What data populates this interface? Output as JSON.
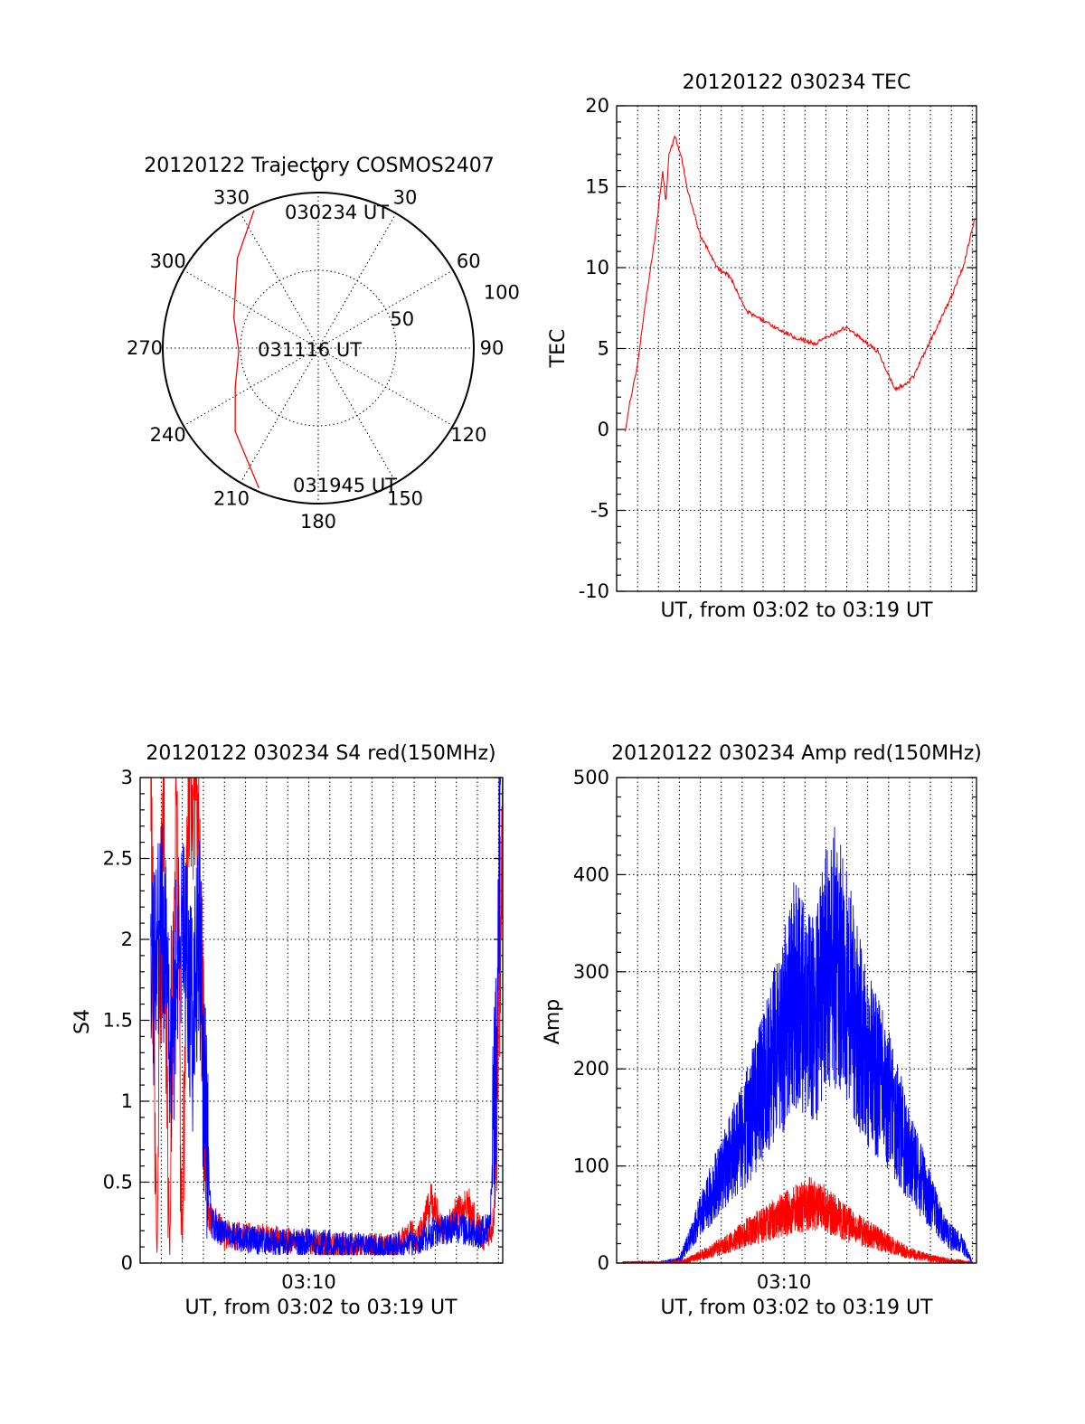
{
  "colors": {
    "red": "#ff0000",
    "blue": "#0000ff",
    "axis": "#000000"
  },
  "chart_data": [
    {
      "type": "polar",
      "id": "trajectory",
      "title": "20120122 Trajectory COSMOS2407",
      "angle_labels": [
        "0",
        "30",
        "60",
        "90",
        "120",
        "150",
        "180",
        "210",
        "240",
        "270",
        "300",
        "330"
      ],
      "radial_labels": [
        "50",
        "100"
      ],
      "rlim": [
        0,
        100
      ],
      "grid": true,
      "series": [
        {
          "color": "red",
          "points": [
            {
              "az": 335,
              "elev": 2
            },
            {
              "az": 318,
              "elev": 20
            },
            {
              "az": 290,
              "elev": 38
            },
            {
              "az": 268,
              "elev": 44
            },
            {
              "az": 245,
              "elev": 37
            },
            {
              "az": 225,
              "elev": 22
            },
            {
              "az": 203,
              "elev": 2
            }
          ]
        }
      ],
      "annotations": [
        "030234 UT",
        "031116 UT",
        "031945 UT"
      ]
    },
    {
      "type": "line",
      "id": "tec",
      "title": "20120122 030234 TEC",
      "xlabel": "UT, from 03:02 to 03:19 UT",
      "ylabel": "TEC",
      "xlim": [
        0,
        17.2
      ],
      "ylim": [
        -10,
        20
      ],
      "yticks": [
        "-10",
        "-5",
        "0",
        "5",
        "10",
        "15",
        "20"
      ],
      "xticks": [],
      "grid": true,
      "series": [
        {
          "color": "red",
          "x": [
            0.4,
            0.6,
            1.0,
            1.4,
            1.9,
            2.2,
            2.35,
            2.5,
            2.8,
            3.1,
            3.4,
            4.0,
            4.8,
            5.4,
            6.2,
            7.3,
            8.5,
            9.5,
            10.5,
            11.0,
            11.5,
            12.5,
            13.3,
            13.8,
            14.2,
            15.0,
            16.0,
            16.6,
            17.1
          ],
          "y": [
            -0.2,
            1.5,
            4.0,
            8.0,
            12.5,
            16.0,
            14.0,
            17.0,
            18.1,
            16.8,
            14.7,
            12.0,
            10.0,
            9.5,
            7.3,
            6.5,
            5.7,
            5.3,
            6.0,
            6.3,
            5.8,
            4.8,
            2.5,
            2.8,
            3.3,
            5.5,
            8.2,
            10.2,
            13.0
          ]
        }
      ]
    },
    {
      "type": "line",
      "id": "s4",
      "title": "20120122 030234 S4 red(150MHz)",
      "xlabel": "UT, from 03:02 to 03:19 UT",
      "ylabel": "S4",
      "xlim": [
        0,
        17.2
      ],
      "ylim": [
        0,
        3
      ],
      "yticks": [
        "0",
        "0.5",
        "1",
        "1.5",
        "2",
        "2.5",
        "3"
      ],
      "xticks": [
        "03:10"
      ],
      "xtick_values": [
        8.0
      ],
      "grid": true,
      "series": [
        {
          "color": "red",
          "x": [
            0.5,
            0.8,
            1.1,
            1.4,
            1.7,
            2.0,
            2.3,
            2.7,
            3.2,
            4.0,
            6.0,
            8.0,
            10.0,
            12.0,
            12.8,
            13.2,
            13.8,
            14.4,
            15.0,
            15.6,
            16.3,
            16.8,
            17.0,
            17.2
          ],
          "y": [
            3,
            0,
            3,
            0,
            3,
            0.1,
            3,
            3,
            0.3,
            0.18,
            0.15,
            0.12,
            0.1,
            0.1,
            0.18,
            0.15,
            0.38,
            0.2,
            0.3,
            0.35,
            0.15,
            0.25,
            1.5,
            2.6
          ]
        },
        {
          "color": "blue",
          "x": [
            0.5,
            1.0,
            1.5,
            2.0,
            2.5,
            2.8,
            3.0,
            3.4,
            4.0,
            6.0,
            8.0,
            10.0,
            12.0,
            13.0,
            14.0,
            15.0,
            16.0,
            16.6,
            16.9,
            17.1
          ],
          "y": [
            1.6,
            2.1,
            1.4,
            2.2,
            1.5,
            2.1,
            1.1,
            0.25,
            0.17,
            0.13,
            0.13,
            0.11,
            0.1,
            0.12,
            0.2,
            0.22,
            0.18,
            0.22,
            1.2,
            3
          ]
        }
      ]
    },
    {
      "type": "line",
      "id": "amp",
      "title": "20120122 030234 Amp red(150MHz)",
      "xlabel": "UT, from 03:02 to 03:19 UT",
      "ylabel": "Amp",
      "xlim": [
        0,
        17.2
      ],
      "ylim": [
        0,
        500
      ],
      "yticks": [
        "0",
        "100",
        "200",
        "300",
        "400",
        "500"
      ],
      "xticks": [
        "03:10"
      ],
      "xtick_values": [
        8.0
      ],
      "grid": true,
      "series": [
        {
          "color": "blue",
          "x": [
            0.3,
            2.0,
            3.0,
            3.4,
            4.0,
            5.0,
            6.0,
            7.0,
            8.0,
            8.5,
            9.0,
            9.5,
            10.0,
            10.6,
            11.3,
            12.0,
            13.0,
            14.0,
            15.0,
            15.8,
            16.5,
            17.0
          ],
          "y": [
            0,
            0,
            3,
            20,
            50,
            90,
            130,
            180,
            240,
            280,
            260,
            250,
            300,
            320,
            260,
            210,
            170,
            110,
            65,
            30,
            20,
            0
          ]
        },
        {
          "color": "red",
          "x": [
            0.3,
            2.5,
            3.3,
            4.5,
            5.5,
            6.5,
            7.5,
            8.5,
            9.3,
            10.0,
            11.0,
            12.0,
            13.0,
            14.0,
            15.0,
            16.0,
            17.0
          ],
          "y": [
            0,
            0,
            2,
            12,
            22,
            35,
            45,
            55,
            62,
            55,
            40,
            30,
            20,
            10,
            5,
            2,
            0
          ]
        }
      ]
    }
  ]
}
